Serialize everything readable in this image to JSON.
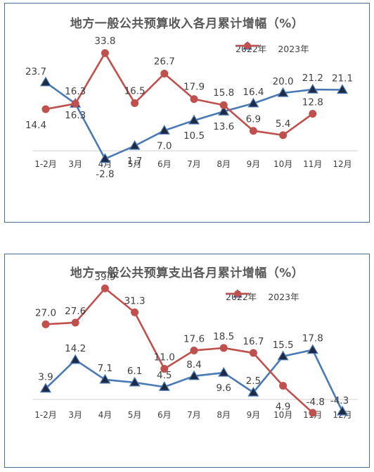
{
  "chart_data": [
    {
      "type": "line",
      "title": "地方一般公共预算收入各月累计增幅（%）",
      "categories": [
        "1-2月",
        "3月",
        "4月",
        "5月",
        "6月",
        "7月",
        "8月",
        "9月",
        "10月",
        "11月",
        "12月"
      ],
      "series": [
        {
          "name": "2022年",
          "color": "#4a7ab5",
          "marker": "triangle",
          "values": [
            23.7,
            16.3,
            -2.8,
            1.7,
            7.0,
            10.5,
            13.6,
            16.4,
            20.0,
            21.2,
            21.1
          ],
          "labels": [
            "23.7",
            "16.3",
            "-2.8",
            "1.7",
            "7.0",
            "10.5",
            "13.6",
            "16.4",
            "20.0",
            "21.2",
            "21.1"
          ]
        },
        {
          "name": "2023年",
          "color": "#c0504d",
          "marker": "circle",
          "values": [
            14.4,
            16.3,
            33.8,
            16.5,
            26.7,
            17.9,
            15.8,
            6.9,
            5.4,
            12.8,
            null
          ],
          "labels": [
            "14.4",
            "16.3",
            "33.8",
            "16.5",
            "26.7",
            "17.9",
            "15.8",
            "6.9",
            "5.4",
            "12.8",
            ""
          ]
        }
      ],
      "legend_position": "top-right",
      "grid": false
    },
    {
      "type": "line",
      "title": "地方一般公共预算支出各月累计增幅（%）",
      "categories": [
        "1-2月",
        "3月",
        "4月",
        "5月",
        "6月",
        "7月",
        "8月",
        "9月",
        "10月",
        "11月",
        "12月"
      ],
      "series": [
        {
          "name": "2022年",
          "color": "#4a7ab5",
          "marker": "triangle",
          "values": [
            3.9,
            14.2,
            7.1,
            6.1,
            4.5,
            8.4,
            9.6,
            2.5,
            15.5,
            17.8,
            -4.3
          ],
          "labels": [
            "3.9",
            "14.2",
            "7.1",
            "6.1",
            "4.5",
            "8.4",
            "9.6",
            "2.5",
            "15.5",
            "17.8",
            "-4.3"
          ]
        },
        {
          "name": "2023年",
          "color": "#c0504d",
          "marker": "circle",
          "values": [
            27.0,
            27.6,
            39.9,
            31.3,
            11.0,
            17.6,
            18.5,
            16.7,
            4.9,
            -4.8,
            null
          ],
          "labels": [
            "27.0",
            "27.6",
            "39.9",
            "31.3",
            "11.0",
            "17.6",
            "18.5",
            "16.7",
            "4.9",
            "-4.8",
            ""
          ]
        }
      ],
      "legend_position": "top-right",
      "grid": false
    }
  ]
}
